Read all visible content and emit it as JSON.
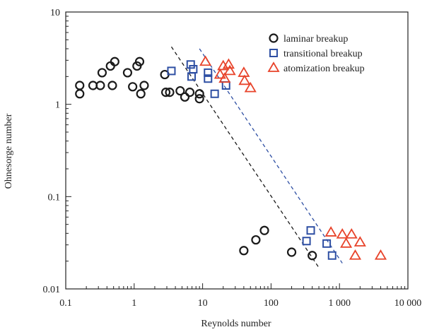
{
  "chart_data": {
    "type": "scatter",
    "xlabel": "Reynolds number",
    "ylabel": "Ohnesorge number",
    "x_scale": "log",
    "y_scale": "log",
    "xlim": [
      0.1,
      10000
    ],
    "ylim": [
      0.01,
      10
    ],
    "x_ticks": [
      {
        "value": 0.1,
        "label": "0.1"
      },
      {
        "value": 1,
        "label": "1"
      },
      {
        "value": 10,
        "label": "10"
      },
      {
        "value": 100,
        "label": "100"
      },
      {
        "value": 1000,
        "label": "1 000"
      },
      {
        "value": 10000,
        "label": "10 000"
      }
    ],
    "y_ticks": [
      {
        "value": 0.01,
        "label": "0.01"
      },
      {
        "value": 0.1,
        "label": "0.1"
      },
      {
        "value": 1,
        "label": "1"
      },
      {
        "value": 10,
        "label": "10"
      }
    ],
    "grid": false,
    "legend_position": "top-right",
    "series": [
      {
        "name": "laminar breakup",
        "marker": "circle",
        "color": "#1a1a1a",
        "points": [
          [
            0.16,
            1.6
          ],
          [
            0.16,
            1.3
          ],
          [
            0.25,
            1.6
          ],
          [
            0.32,
            1.6
          ],
          [
            0.34,
            2.2
          ],
          [
            0.45,
            2.6
          ],
          [
            0.48,
            1.6
          ],
          [
            0.52,
            2.9
          ],
          [
            0.8,
            2.2
          ],
          [
            0.95,
            1.55
          ],
          [
            1.1,
            2.6
          ],
          [
            1.2,
            2.9
          ],
          [
            1.25,
            1.3
          ],
          [
            1.4,
            1.6
          ],
          [
            2.8,
            2.1
          ],
          [
            2.9,
            1.35
          ],
          [
            3.3,
            1.35
          ],
          [
            4.7,
            1.4
          ],
          [
            5.5,
            1.2
          ],
          [
            6.5,
            1.35
          ],
          [
            9,
            1.3
          ],
          [
            9,
            1.15
          ],
          [
            40,
            0.026
          ],
          [
            60,
            0.034
          ],
          [
            80,
            0.043
          ],
          [
            200,
            0.025
          ],
          [
            400,
            0.023
          ]
        ]
      },
      {
        "name": "transitional breakup",
        "marker": "square",
        "color": "#2e4fa3",
        "points": [
          [
            3.5,
            2.3
          ],
          [
            6.7,
            2.7
          ],
          [
            6.9,
            2.0
          ],
          [
            7.3,
            2.4
          ],
          [
            12,
            2.2
          ],
          [
            12,
            1.9
          ],
          [
            15,
            1.3
          ],
          [
            22,
            1.6
          ],
          [
            330,
            0.033
          ],
          [
            380,
            0.043
          ],
          [
            650,
            0.031
          ],
          [
            780,
            0.023
          ]
        ]
      },
      {
        "name": "atomization breakup",
        "marker": "triangle",
        "color": "#e8432a",
        "points": [
          [
            11,
            2.9
          ],
          [
            18,
            2.1
          ],
          [
            20,
            2.6
          ],
          [
            21,
            1.9
          ],
          [
            24,
            2.7
          ],
          [
            25,
            2.3
          ],
          [
            40,
            2.2
          ],
          [
            41,
            1.8
          ],
          [
            50,
            1.5
          ],
          [
            750,
            0.041
          ],
          [
            1100,
            0.039
          ],
          [
            1250,
            0.031
          ],
          [
            1500,
            0.039
          ],
          [
            1700,
            0.023
          ],
          [
            2000,
            0.032
          ],
          [
            4000,
            0.023
          ]
        ]
      }
    ],
    "trend_lines": [
      {
        "color": "#1a1a1a",
        "from": [
          3.5,
          4.2
        ],
        "to": [
          500,
          0.017
        ]
      },
      {
        "color": "#2e4fa3",
        "from": [
          9,
          4.0
        ],
        "to": [
          1100,
          0.019
        ]
      }
    ]
  }
}
